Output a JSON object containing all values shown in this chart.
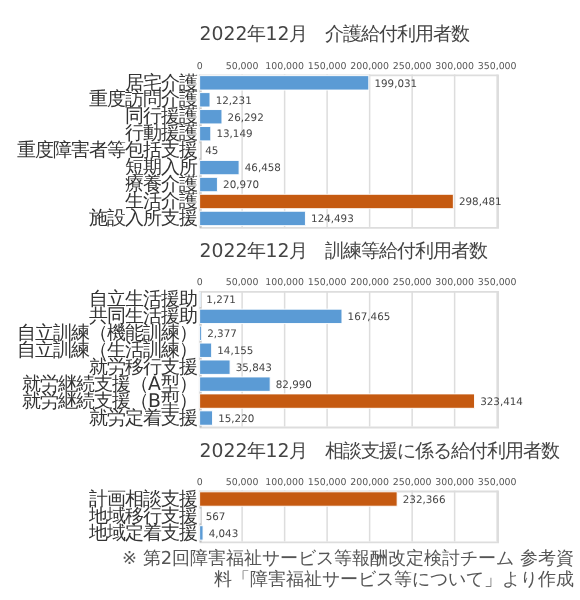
{
  "chart_data": [
    {
      "type": "bar",
      "orientation": "horizontal",
      "title": "2022年12月　介護給付利用者数",
      "categories": [
        "居宅介護",
        "重度訪問介護",
        "同行援護",
        "行動援護",
        "重度障害者等包括支援",
        "短期入所",
        "療養介護",
        "生活介護",
        "施設入所支援"
      ],
      "values": [
        199031,
        12231,
        26292,
        13149,
        45,
        46458,
        20970,
        298481,
        124493
      ],
      "value_labels": [
        "199,031",
        "12,231",
        "26,292",
        "13,149",
        "45",
        "46,458",
        "20,970",
        "298,481",
        "124,493"
      ],
      "colors": [
        "#5b9bd5",
        "#5b9bd5",
        "#5b9bd5",
        "#5b9bd5",
        "#5b9bd5",
        "#5b9bd5",
        "#5b9bd5",
        "#c55a11",
        "#5b9bd5"
      ],
      "xlim": [
        0,
        350000
      ],
      "xticks": [
        {
          "value": 0,
          "label": "0"
        },
        {
          "value": 50000,
          "label": "50,000"
        },
        {
          "value": 100000,
          "label": "100,000"
        },
        {
          "value": 150000,
          "label": "150,000"
        },
        {
          "value": 200000,
          "label": "200,000"
        },
        {
          "value": 250000,
          "label": "250,000"
        },
        {
          "value": 300000,
          "label": "300,000"
        },
        {
          "value": 350000,
          "label": "350,000"
        }
      ],
      "grid": "x"
    },
    {
      "type": "bar",
      "orientation": "horizontal",
      "title": "2022年12月　訓練等給付利用者数",
      "categories": [
        "自立生活援助",
        "共同生活援助",
        "自立訓練（機能訓練）",
        "自立訓練（生活訓練）",
        "就労移行支援",
        "就労継続支援（A型）",
        "就労継続支援（B型）",
        "就労定着支援"
      ],
      "values": [
        1271,
        167465,
        2377,
        14155,
        35843,
        82990,
        323414,
        15220
      ],
      "value_labels": [
        "1,271",
        "167,465",
        "2,377",
        "14,155",
        "35,843",
        "82,990",
        "323,414",
        "15,220"
      ],
      "colors": [
        "#5b9bd5",
        "#5b9bd5",
        "#5b9bd5",
        "#5b9bd5",
        "#5b9bd5",
        "#5b9bd5",
        "#c55a11",
        "#5b9bd5"
      ],
      "xlim": [
        0,
        350000
      ],
      "xticks": [
        {
          "value": 0,
          "label": "0"
        },
        {
          "value": 50000,
          "label": "50,000"
        },
        {
          "value": 100000,
          "label": "100,000"
        },
        {
          "value": 150000,
          "label": "150,000"
        },
        {
          "value": 200000,
          "label": "200,000"
        },
        {
          "value": 250000,
          "label": "250,000"
        },
        {
          "value": 300000,
          "label": "300,000"
        },
        {
          "value": 350000,
          "label": "350,000"
        }
      ],
      "grid": "x"
    },
    {
      "type": "bar",
      "orientation": "horizontal",
      "title": "2022年12月　相談支援に係る給付利用者数",
      "categories": [
        "計画相談支援",
        "地域移行支援",
        "地域定着支援"
      ],
      "values": [
        232366,
        567,
        4043
      ],
      "value_labels": [
        "232,366",
        "567",
        "4,043"
      ],
      "colors": [
        "#c55a11",
        "#5b9bd5",
        "#5b9bd5"
      ],
      "xlim": [
        0,
        350000
      ],
      "xticks": [
        {
          "value": 0,
          "label": "0"
        },
        {
          "value": 50000,
          "label": "50,000"
        },
        {
          "value": 100000,
          "label": "100,000"
        },
        {
          "value": 150000,
          "label": "150,000"
        },
        {
          "value": 200000,
          "label": "200,000"
        },
        {
          "value": 250000,
          "label": "250,000"
        },
        {
          "value": 300000,
          "label": "300,000"
        },
        {
          "value": 350000,
          "label": "350,000"
        }
      ],
      "grid": "x",
      "annotations": [
        "※ 第2回障害福祉サービス等報酬改定検討チーム 参考資料「障害福祉サービス等について」より作成"
      ]
    }
  ]
}
